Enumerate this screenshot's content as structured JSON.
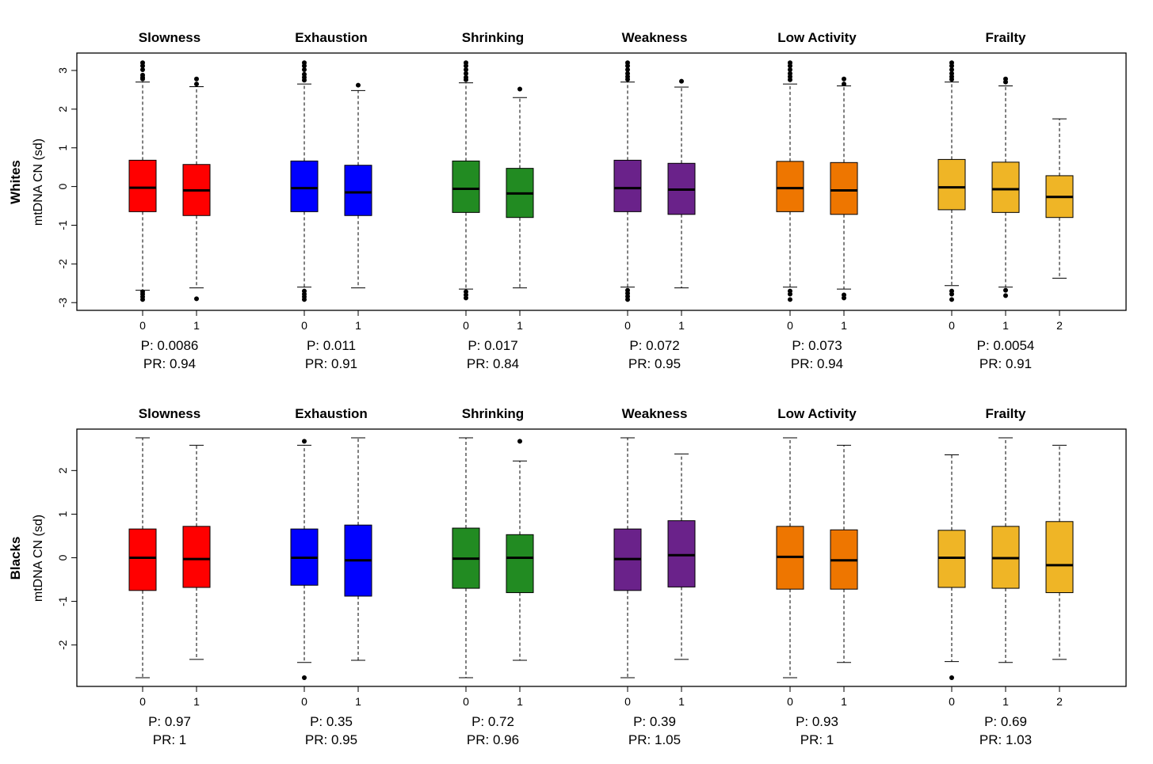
{
  "chart_data": [
    {
      "type": "boxplot",
      "row_label": "Whites",
      "ylabel": "mtDNA CN (sd)",
      "ylim": [
        -3.2,
        3.45
      ],
      "yticks": [
        -3,
        -2,
        -1,
        0,
        1,
        2,
        3
      ],
      "panels": [
        {
          "title": "Slowness",
          "color": "#ff0000",
          "p_label": "P: 0.0086",
          "pr_label": "PR: 0.94",
          "boxes": [
            {
              "group": "0",
              "whisker_low": -2.68,
              "q1": -0.65,
              "median": -0.03,
              "q3": 0.68,
              "whisker_high": 2.7,
              "outliers": [
                3.2,
                3.12,
                3.02,
                2.88,
                2.82,
                2.78,
                -2.72,
                -2.78,
                -2.85,
                -2.92
              ]
            },
            {
              "group": "1",
              "whisker_low": -2.62,
              "q1": -0.75,
              "median": -0.1,
              "q3": 0.57,
              "whisker_high": 2.58,
              "outliers": [
                2.78,
                2.65,
                -2.9
              ]
            }
          ]
        },
        {
          "title": "Exhaustion",
          "color": "#0000ff",
          "p_label": "P: 0.011",
          "pr_label": "PR: 0.91",
          "boxes": [
            {
              "group": "0",
              "whisker_low": -2.6,
              "q1": -0.65,
              "median": -0.04,
              "q3": 0.66,
              "whisker_high": 2.65,
              "outliers": [
                3.2,
                3.12,
                3.02,
                2.9,
                2.82,
                2.75,
                -2.7,
                -2.78,
                -2.85,
                -2.92
              ]
            },
            {
              "group": "1",
              "whisker_low": -2.62,
              "q1": -0.75,
              "median": -0.15,
              "q3": 0.55,
              "whisker_high": 2.48,
              "outliers": [
                2.62
              ]
            }
          ]
        },
        {
          "title": "Shrinking",
          "color": "#228b22",
          "p_label": "P: 0.017",
          "pr_label": "PR: 0.84",
          "boxes": [
            {
              "group": "0",
              "whisker_low": -2.65,
              "q1": -0.67,
              "median": -0.06,
              "q3": 0.66,
              "whisker_high": 2.68,
              "outliers": [
                3.2,
                3.12,
                3.02,
                2.92,
                2.82,
                2.76,
                -2.72,
                -2.8,
                -2.88
              ]
            },
            {
              "group": "1",
              "whisker_low": -2.62,
              "q1": -0.8,
              "median": -0.18,
              "q3": 0.47,
              "whisker_high": 2.3,
              "outliers": [
                2.52
              ]
            }
          ]
        },
        {
          "title": "Weakness",
          "color": "#6a228a",
          "p_label": "P: 0.072",
          "pr_label": "PR: 0.95",
          "boxes": [
            {
              "group": "0",
              "whisker_low": -2.6,
              "q1": -0.65,
              "median": -0.04,
              "q3": 0.68,
              "whisker_high": 2.7,
              "outliers": [
                3.2,
                3.12,
                3.02,
                2.92,
                2.84,
                2.77,
                -2.68,
                -2.76,
                -2.84,
                -2.92
              ]
            },
            {
              "group": "1",
              "whisker_low": -2.62,
              "q1": -0.72,
              "median": -0.08,
              "q3": 0.6,
              "whisker_high": 2.57,
              "outliers": [
                2.72
              ]
            }
          ]
        },
        {
          "title": "Low Activity",
          "color": "#ee7600",
          "p_label": "P: 0.073",
          "pr_label": "PR: 0.94",
          "boxes": [
            {
              "group": "0",
              "whisker_low": -2.6,
              "q1": -0.65,
              "median": -0.04,
              "q3": 0.65,
              "whisker_high": 2.65,
              "outliers": [
                3.2,
                3.12,
                3.02,
                2.92,
                2.84,
                2.76,
                -2.7,
                -2.78,
                -2.92
              ]
            },
            {
              "group": "1",
              "whisker_low": -2.65,
              "q1": -0.72,
              "median": -0.1,
              "q3": 0.62,
              "whisker_high": 2.6,
              "outliers": [
                2.78,
                2.65,
                -2.8,
                -2.88
              ]
            }
          ]
        },
        {
          "title": "Frailty",
          "color": "#efb526",
          "p_label": "P: 0.0054",
          "pr_label": "PR: 0.91",
          "boxes": [
            {
              "group": "0",
              "whisker_low": -2.56,
              "q1": -0.6,
              "median": -0.02,
              "q3": 0.7,
              "whisker_high": 2.7,
              "outliers": [
                3.2,
                3.12,
                3.02,
                2.92,
                2.84,
                2.77,
                -2.7,
                -2.78,
                -2.92
              ]
            },
            {
              "group": "1",
              "whisker_low": -2.6,
              "q1": -0.67,
              "median": -0.07,
              "q3": 0.63,
              "whisker_high": 2.6,
              "outliers": [
                2.78,
                2.7,
                -2.68,
                -2.82
              ]
            },
            {
              "group": "2",
              "whisker_low": -2.37,
              "q1": -0.8,
              "median": -0.27,
              "q3": 0.28,
              "whisker_high": 1.75,
              "outliers": []
            }
          ]
        }
      ]
    },
    {
      "type": "boxplot",
      "row_label": "Blacks",
      "ylabel": "mtDNA CN (sd)",
      "ylim": [
        -2.95,
        2.95
      ],
      "yticks": [
        -2,
        -1,
        0,
        1,
        2
      ],
      "panels": [
        {
          "title": "Slowness",
          "color": "#ff0000",
          "p_label": "P: 0.97",
          "pr_label": "PR: 1",
          "boxes": [
            {
              "group": "0",
              "whisker_low": -2.75,
              "q1": -0.75,
              "median": 0.0,
              "q3": 0.66,
              "whisker_high": 2.75,
              "outliers": []
            },
            {
              "group": "1",
              "whisker_low": -2.33,
              "q1": -0.68,
              "median": -0.03,
              "q3": 0.72,
              "whisker_high": 2.58,
              "outliers": []
            }
          ]
        },
        {
          "title": "Exhaustion",
          "color": "#0000ff",
          "p_label": "P: 0.35",
          "pr_label": "PR: 0.95",
          "boxes": [
            {
              "group": "0",
              "whisker_low": -2.4,
              "q1": -0.63,
              "median": 0.0,
              "q3": 0.66,
              "whisker_high": 2.58,
              "outliers": [
                2.67,
                -2.75
              ]
            },
            {
              "group": "1",
              "whisker_low": -2.35,
              "q1": -0.88,
              "median": -0.06,
              "q3": 0.75,
              "whisker_high": 2.75,
              "outliers": []
            }
          ]
        },
        {
          "title": "Shrinking",
          "color": "#228b22",
          "p_label": "P: 0.72",
          "pr_label": "PR: 0.96",
          "boxes": [
            {
              "group": "0",
              "whisker_low": -2.75,
              "q1": -0.7,
              "median": -0.02,
              "q3": 0.68,
              "whisker_high": 2.75,
              "outliers": []
            },
            {
              "group": "1",
              "whisker_low": -2.35,
              "q1": -0.8,
              "median": 0.0,
              "q3": 0.53,
              "whisker_high": 2.22,
              "outliers": [
                2.67
              ]
            }
          ]
        },
        {
          "title": "Weakness",
          "color": "#6a228a",
          "p_label": "P: 0.39",
          "pr_label": "PR: 1.05",
          "boxes": [
            {
              "group": "0",
              "whisker_low": -2.75,
              "q1": -0.75,
              "median": -0.03,
              "q3": 0.66,
              "whisker_high": 2.75,
              "outliers": []
            },
            {
              "group": "1",
              "whisker_low": -2.33,
              "q1": -0.67,
              "median": 0.06,
              "q3": 0.85,
              "whisker_high": 2.38,
              "outliers": []
            }
          ]
        },
        {
          "title": "Low Activity",
          "color": "#ee7600",
          "p_label": "P: 0.93",
          "pr_label": "PR: 1",
          "boxes": [
            {
              "group": "0",
              "whisker_low": -2.75,
              "q1": -0.72,
              "median": 0.02,
              "q3": 0.72,
              "whisker_high": 2.75,
              "outliers": []
            },
            {
              "group": "1",
              "whisker_low": -2.4,
              "q1": -0.72,
              "median": -0.06,
              "q3": 0.64,
              "whisker_high": 2.58,
              "outliers": []
            }
          ]
        },
        {
          "title": "Frailty",
          "color": "#efb526",
          "p_label": "P: 0.69",
          "pr_label": "PR: 1.03",
          "boxes": [
            {
              "group": "0",
              "whisker_low": -2.38,
              "q1": -0.68,
              "median": 0.0,
              "q3": 0.63,
              "whisker_high": 2.36,
              "outliers": [
                -2.75
              ]
            },
            {
              "group": "1",
              "whisker_low": -2.4,
              "q1": -0.7,
              "median": -0.01,
              "q3": 0.72,
              "whisker_high": 2.75,
              "outliers": []
            },
            {
              "group": "2",
              "whisker_low": -2.33,
              "q1": -0.8,
              "median": -0.17,
              "q3": 0.83,
              "whisker_high": 2.58,
              "outliers": []
            }
          ]
        }
      ]
    }
  ]
}
